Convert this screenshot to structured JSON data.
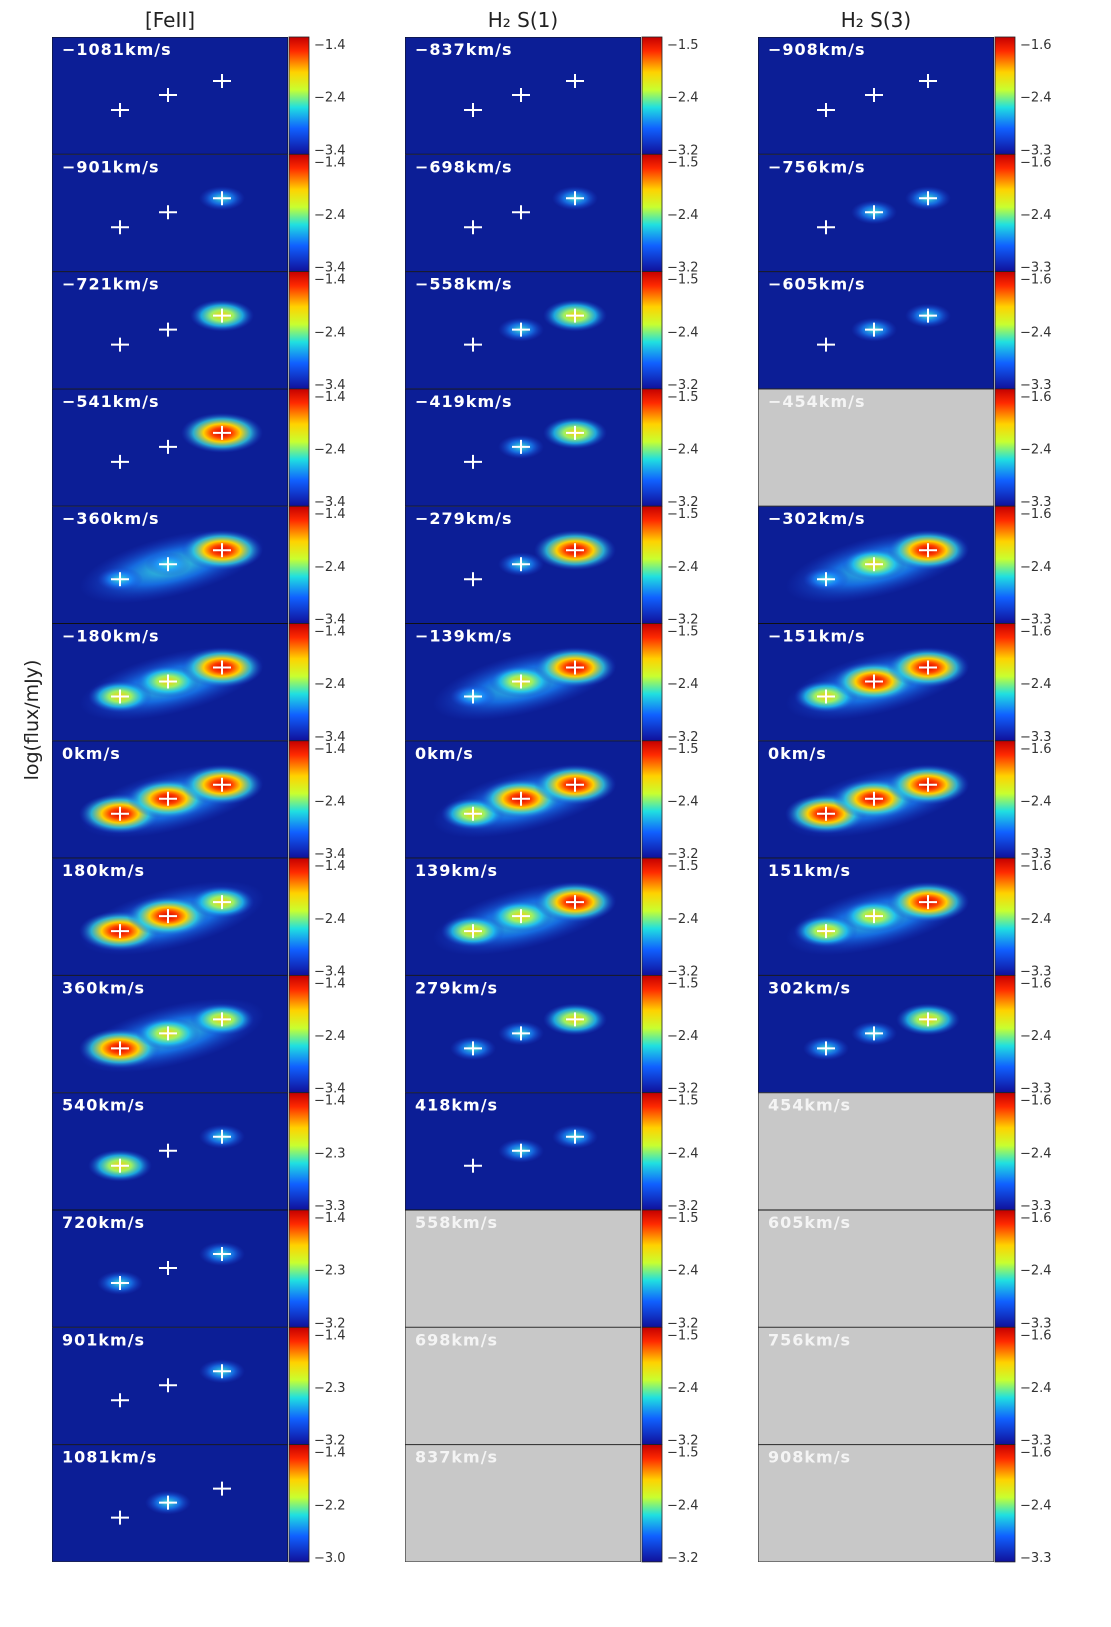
{
  "y_label": "log(flux/mJy)",
  "columns": [
    {
      "title": "[FeII]",
      "panels": [
        {
          "label": "−1081km/s",
          "blank": false,
          "ticks": [
            "−1.4",
            "−2.4",
            "−3.4"
          ]
        },
        {
          "label": "−901km/s",
          "blank": false,
          "ticks": [
            "−1.4",
            "−2.4",
            "−3.4"
          ]
        },
        {
          "label": "−721km/s",
          "blank": false,
          "ticks": [
            "−1.4",
            "−2.4",
            "−3.4"
          ]
        },
        {
          "label": "−541km/s",
          "blank": false,
          "ticks": [
            "−1.4",
            "−2.4",
            "−3.4"
          ]
        },
        {
          "label": "−360km/s",
          "blank": false,
          "ticks": [
            "−1.4",
            "−2.4",
            "−3.4"
          ]
        },
        {
          "label": "−180km/s",
          "blank": false,
          "ticks": [
            "−1.4",
            "−2.4",
            "−3.4"
          ]
        },
        {
          "label": "0km/s",
          "blank": false,
          "ticks": [
            "−1.4",
            "−2.4",
            "−3.4"
          ]
        },
        {
          "label": "180km/s",
          "blank": false,
          "ticks": [
            "−1.4",
            "−2.4",
            "−3.4"
          ]
        },
        {
          "label": "360km/s",
          "blank": false,
          "ticks": [
            "−1.4",
            "−2.4",
            "−3.4"
          ]
        },
        {
          "label": "540km/s",
          "blank": false,
          "ticks": [
            "−1.4",
            "−2.3",
            "−3.3"
          ]
        },
        {
          "label": "720km/s",
          "blank": false,
          "ticks": [
            "−1.4",
            "−2.3",
            "−3.2"
          ]
        },
        {
          "label": "901km/s",
          "blank": false,
          "ticks": [
            "−1.4",
            "−2.3",
            "−3.2"
          ]
        },
        {
          "label": "1081km/s",
          "blank": false,
          "ticks": [
            "−1.4",
            "−2.2",
            "−3.0"
          ]
        }
      ]
    },
    {
      "title": "H₂ S(1)",
      "panels": [
        {
          "label": "−837km/s",
          "blank": false,
          "ticks": [
            "−1.5",
            "−2.4",
            "−3.2"
          ]
        },
        {
          "label": "−698km/s",
          "blank": false,
          "ticks": [
            "−1.5",
            "−2.4",
            "−3.2"
          ]
        },
        {
          "label": "−558km/s",
          "blank": false,
          "ticks": [
            "−1.5",
            "−2.4",
            "−3.2"
          ]
        },
        {
          "label": "−419km/s",
          "blank": false,
          "ticks": [
            "−1.5",
            "−2.4",
            "−3.2"
          ]
        },
        {
          "label": "−279km/s",
          "blank": false,
          "ticks": [
            "−1.5",
            "−2.4",
            "−3.2"
          ]
        },
        {
          "label": "−139km/s",
          "blank": false,
          "ticks": [
            "−1.5",
            "−2.4",
            "−3.2"
          ]
        },
        {
          "label": "0km/s",
          "blank": false,
          "ticks": [
            "−1.5",
            "−2.4",
            "−3.2"
          ]
        },
        {
          "label": "139km/s",
          "blank": false,
          "ticks": [
            "−1.5",
            "−2.4",
            "−3.2"
          ]
        },
        {
          "label": "279km/s",
          "blank": false,
          "ticks": [
            "−1.5",
            "−2.4",
            "−3.2"
          ]
        },
        {
          "label": "418km/s",
          "blank": false,
          "ticks": [
            "−1.5",
            "−2.4",
            "−3.2"
          ]
        },
        {
          "label": "558km/s",
          "blank": true,
          "ticks": [
            "−1.5",
            "−2.4",
            "−3.2"
          ]
        },
        {
          "label": "698km/s",
          "blank": true,
          "ticks": [
            "−1.5",
            "−2.4",
            "−3.2"
          ]
        },
        {
          "label": "837km/s",
          "blank": true,
          "ticks": [
            "−1.5",
            "−2.4",
            "−3.2"
          ]
        }
      ]
    },
    {
      "title": "H₂ S(3)",
      "panels": [
        {
          "label": "−908km/s",
          "blank": false,
          "ticks": [
            "−1.6",
            "−2.4",
            "−3.3"
          ]
        },
        {
          "label": "−756km/s",
          "blank": false,
          "ticks": [
            "−1.6",
            "−2.4",
            "−3.3"
          ]
        },
        {
          "label": "−605km/s",
          "blank": false,
          "ticks": [
            "−1.6",
            "−2.4",
            "−3.3"
          ]
        },
        {
          "label": "−454km/s",
          "blank": true,
          "ticks": [
            "−1.6",
            "−2.4",
            "−3.3"
          ]
        },
        {
          "label": "−302km/s",
          "blank": false,
          "ticks": [
            "−1.6",
            "−2.4",
            "−3.3"
          ]
        },
        {
          "label": "−151km/s",
          "blank": false,
          "ticks": [
            "−1.6",
            "−2.4",
            "−3.3"
          ]
        },
        {
          "label": "0km/s",
          "blank": false,
          "ticks": [
            "−1.6",
            "−2.4",
            "−3.3"
          ]
        },
        {
          "label": "151km/s",
          "blank": false,
          "ticks": [
            "−1.6",
            "−2.4",
            "−3.3"
          ]
        },
        {
          "label": "302km/s",
          "blank": false,
          "ticks": [
            "−1.6",
            "−2.4",
            "−3.3"
          ]
        },
        {
          "label": "454km/s",
          "blank": true,
          "ticks": [
            "−1.6",
            "−2.4",
            "−3.3"
          ]
        },
        {
          "label": "605km/s",
          "blank": true,
          "ticks": [
            "−1.6",
            "−2.4",
            "−3.3"
          ]
        },
        {
          "label": "756km/s",
          "blank": true,
          "ticks": [
            "−1.6",
            "−2.4",
            "−3.3"
          ]
        },
        {
          "label": "908km/s",
          "blank": true,
          "ticks": [
            "−1.6",
            "−2.4",
            "−3.3"
          ]
        }
      ]
    }
  ]
}
